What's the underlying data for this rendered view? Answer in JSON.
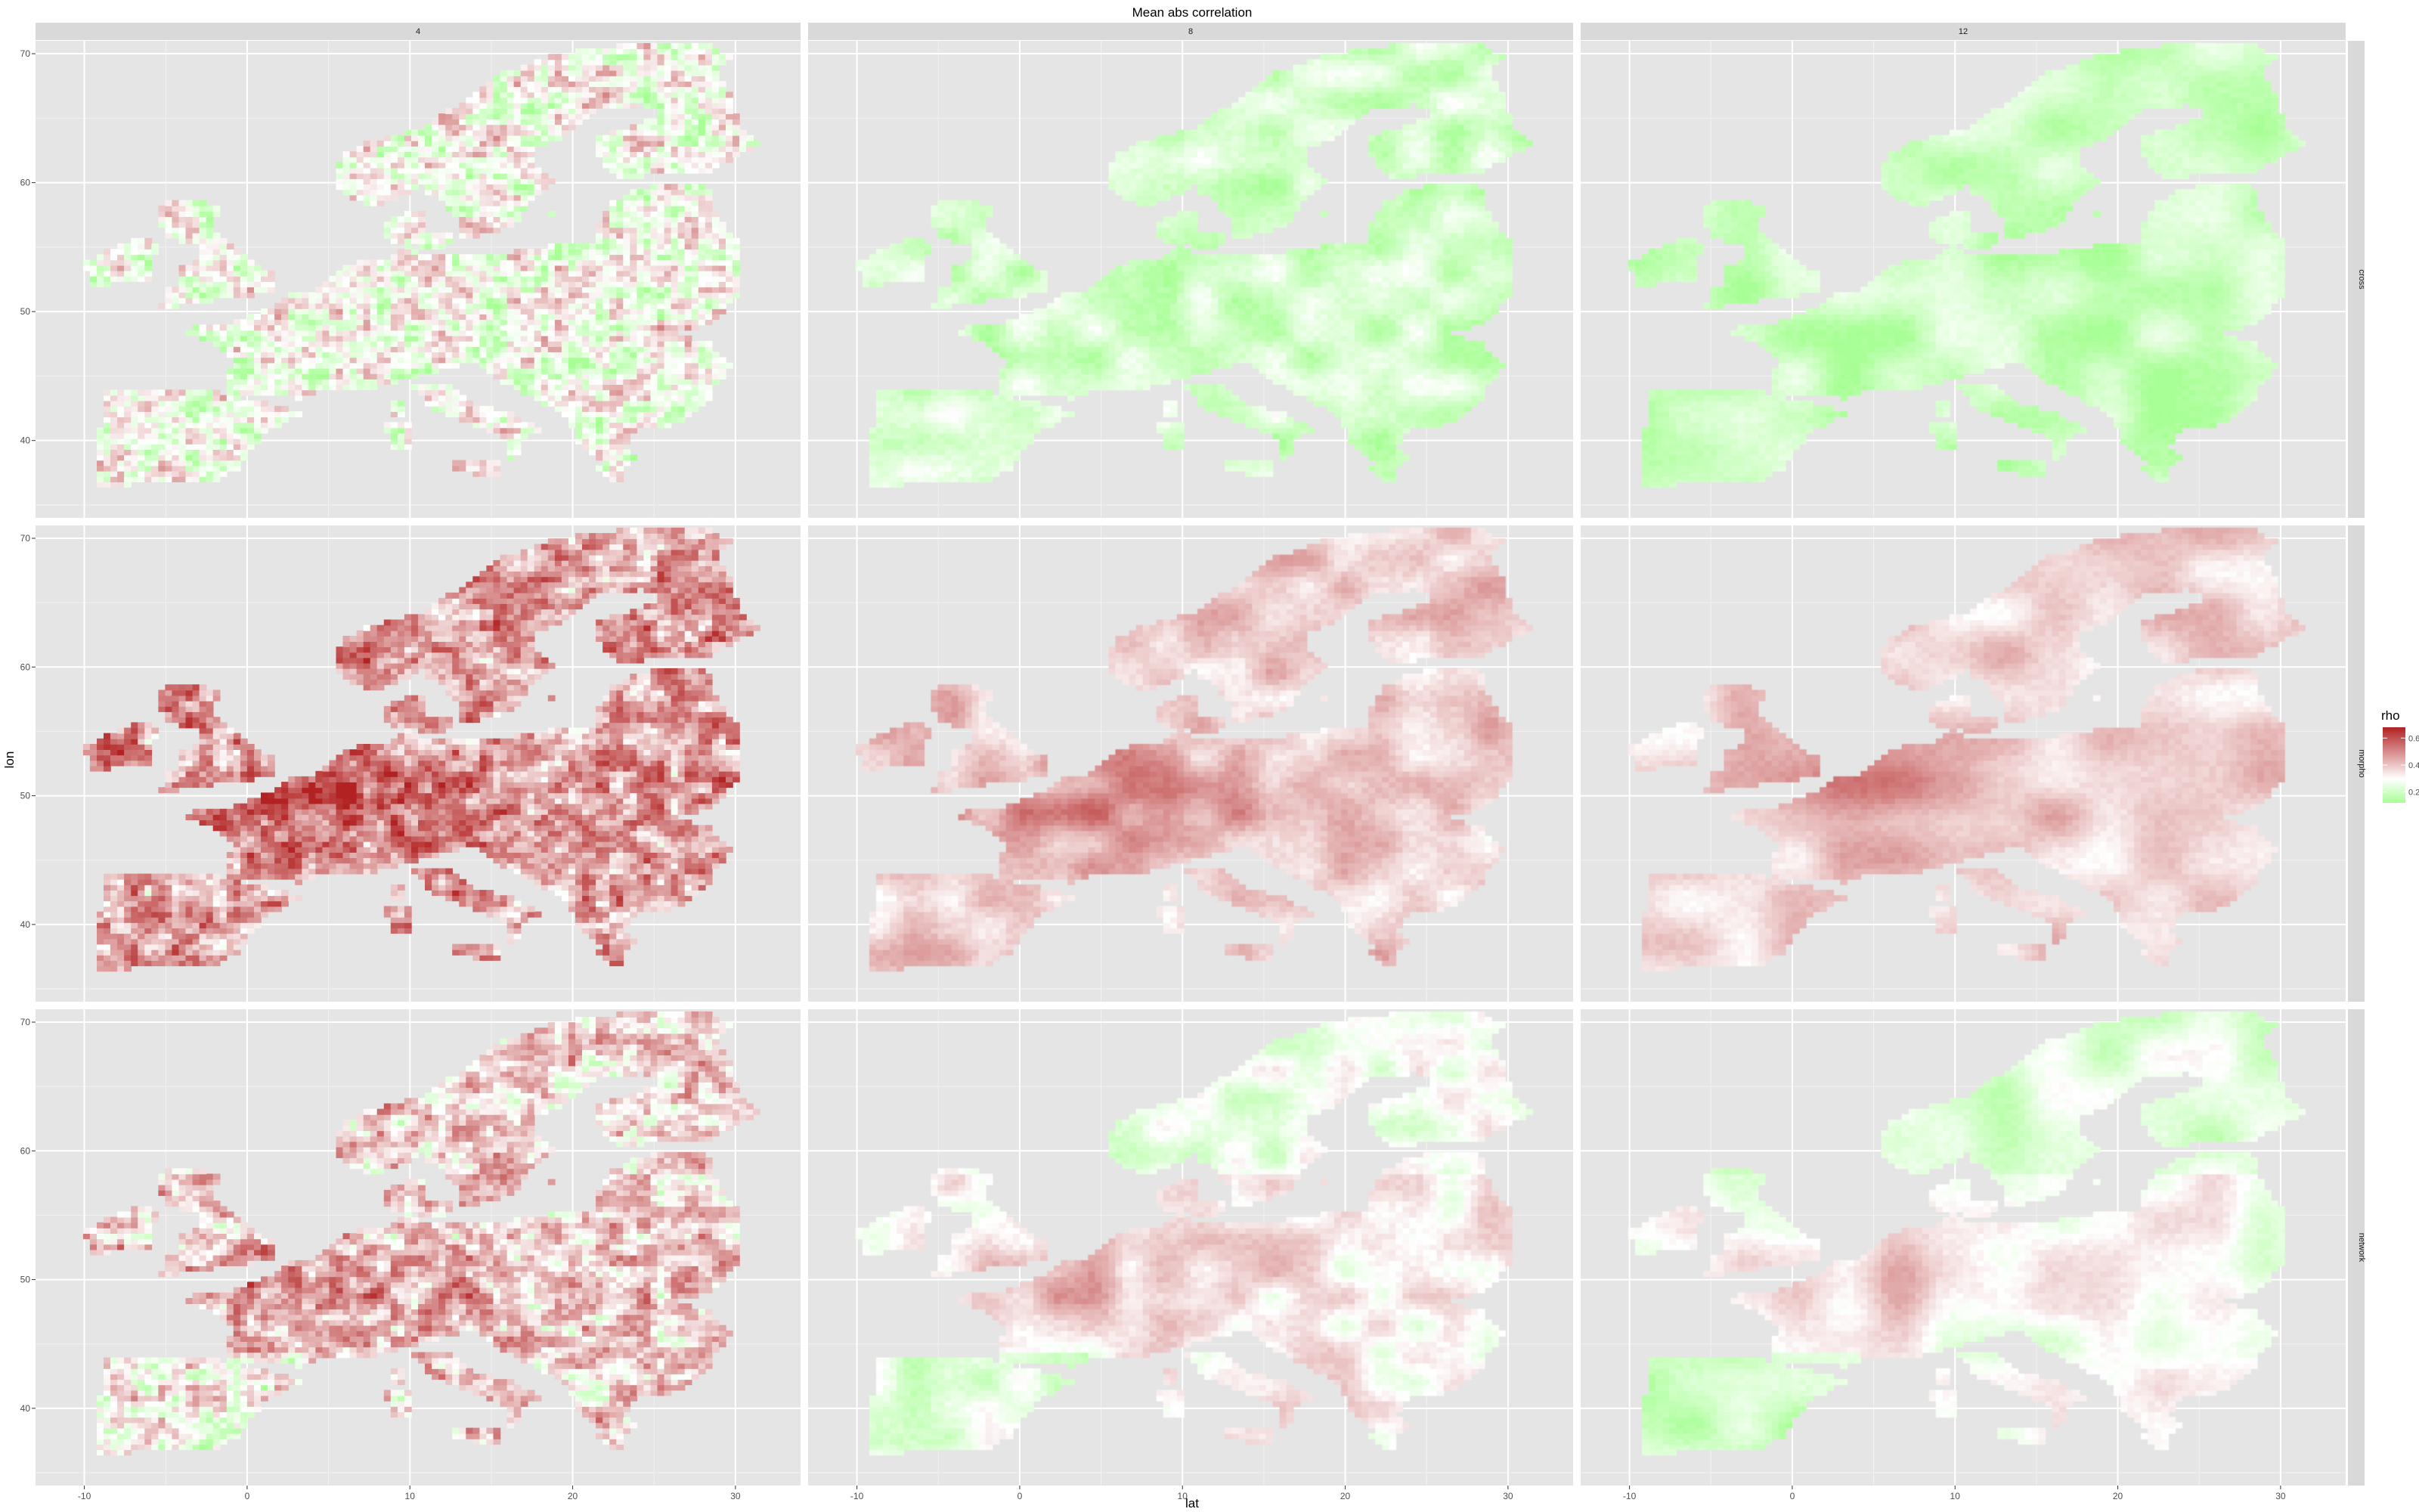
{
  "title": "Mean abs correlation",
  "col_strips": [
    "4",
    "8",
    "12"
  ],
  "row_strips": [
    "cross",
    "morpho",
    "network"
  ],
  "xlabel": "lat",
  "ylabel": "lon",
  "x_ticks": [
    -10,
    0,
    10,
    20,
    30
  ],
  "y_ticks": [
    40,
    50,
    60,
    70
  ],
  "x_range": [
    -13,
    34
  ],
  "y_range": [
    34,
    71
  ],
  "legend": {
    "title": "rho",
    "ticks": [
      0.2,
      0.4,
      0.6
    ],
    "range": [
      0.12,
      0.68
    ],
    "colors": {
      "low": "#a8ff96",
      "mid": "#ffffff",
      "high": "#b22222"
    }
  },
  "colors": {
    "panel_bg": "#e5e5e5",
    "grid": "#ffffff",
    "strip_bg": "#d9d9d9",
    "strip_text": "#1a1a1a",
    "axis_text": "#4d4d4d"
  },
  "chart_data": {
    "type": "heatmap",
    "title": "Mean abs correlation",
    "xlabel": "lat",
    "ylabel": "lon",
    "xlim": [
      -13,
      34
    ],
    "ylim": [
      34,
      71
    ],
    "facet_cols": [
      "4",
      "8",
      "12"
    ],
    "facet_rows": [
      "cross",
      "morpho",
      "network"
    ],
    "fill_variable": "rho",
    "fill_scale": {
      "type": "gradient2",
      "low": "#a8ff96",
      "mid": "#ffffff",
      "high": "#b22222",
      "midpoint": 0.3
    },
    "panel_mean_rho": [
      [
        0.3,
        0.21,
        0.19
      ],
      [
        0.46,
        0.39,
        0.37
      ],
      [
        0.38,
        0.32,
        0.29
      ]
    ],
    "legend_position": "right"
  }
}
